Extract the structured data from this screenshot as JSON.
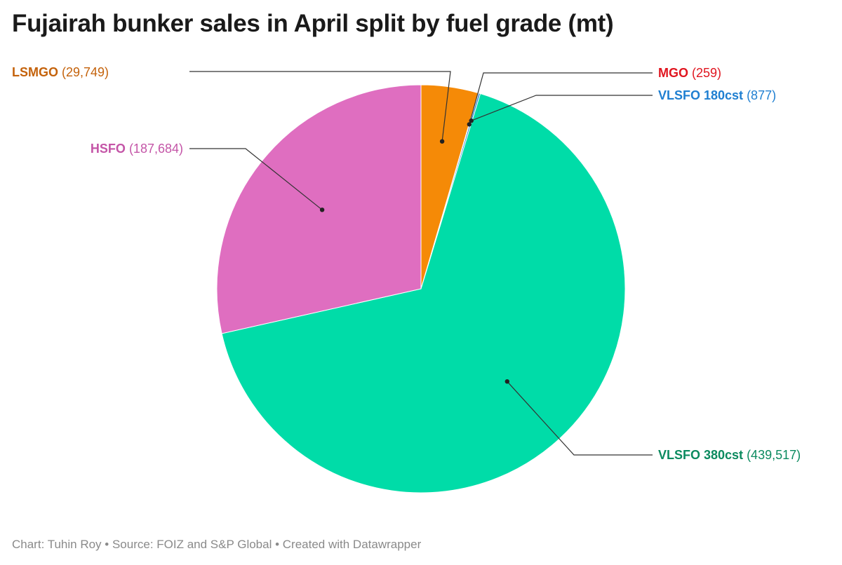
{
  "title": "Fujairah bunker sales in April split by fuel grade (mt)",
  "footer": "Chart: Tuhin Roy • Source: FOIZ and S&P Global • Created with Datawrapper",
  "chart_data": {
    "type": "pie",
    "title": "Fujairah bunker sales in April split by fuel grade (mt)",
    "slices": [
      {
        "name": "LSMGO",
        "value": 29749,
        "value_label": "(29,749)",
        "color": "#f58a07",
        "label_color": "#c4620b"
      },
      {
        "name": "MGO",
        "value": 259,
        "value_label": "(259)",
        "color": "#e0151f",
        "label_color": "#e0151f"
      },
      {
        "name": "VLSFO 180cst",
        "value": 877,
        "value_label": "(877)",
        "color": "#1f7fd1",
        "label_color": "#1f7fd1"
      },
      {
        "name": "VLSFO 380cst",
        "value": 439517,
        "value_label": "(439,517)",
        "color": "#00dca8",
        "label_color": "#0b8a5f"
      },
      {
        "name": "HSFO",
        "value": 187684,
        "value_label": "(187,684)",
        "color": "#df6ec0",
        "label_color": "#c455a7"
      }
    ]
  }
}
